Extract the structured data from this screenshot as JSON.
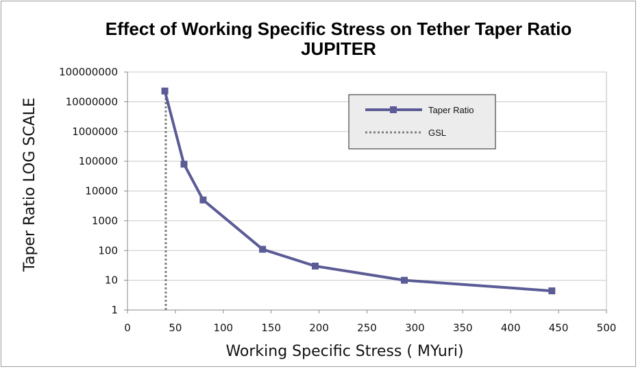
{
  "chart_data": {
    "type": "line",
    "title": "Effect of Working Specific Stress on Tether Taper Ratio",
    "subtitle": "JUPITER",
    "xlabel": "Working Specific Stress ( MYuri)",
    "ylabel": "Taper Ratio  LOG SCALE",
    "xlim": [
      0,
      500
    ],
    "ylim": [
      1,
      100000000
    ],
    "y_scale": "log",
    "grid": "horizontal major gridlines",
    "legend_position": "top-right",
    "x_ticks": [
      "0",
      "50",
      "100",
      "150",
      "200",
      "250",
      "300",
      "350",
      "400",
      "450",
      "500"
    ],
    "y_ticks": [
      "1",
      "10",
      "100",
      "1000",
      "10000",
      "100000",
      "1000000",
      "10000000",
      "100000000"
    ],
    "series": [
      {
        "name": "Taper Ratio",
        "color": "#5b5b96",
        "marker": "square",
        "points": [
          {
            "x": 39,
            "y": 23000000
          },
          {
            "x": 59,
            "y": 80000
          },
          {
            "x": 79,
            "y": 5000
          },
          {
            "x": 141,
            "y": 110
          },
          {
            "x": 196,
            "y": 30
          },
          {
            "x": 289,
            "y": 10
          },
          {
            "x": 443,
            "y": 4.4
          }
        ]
      },
      {
        "name": "GSL",
        "color": "#7f7f7f",
        "style": "dotted",
        "points": [
          {
            "x": 40,
            "y": 1
          },
          {
            "x": 40,
            "y": 23000000
          }
        ]
      }
    ]
  }
}
